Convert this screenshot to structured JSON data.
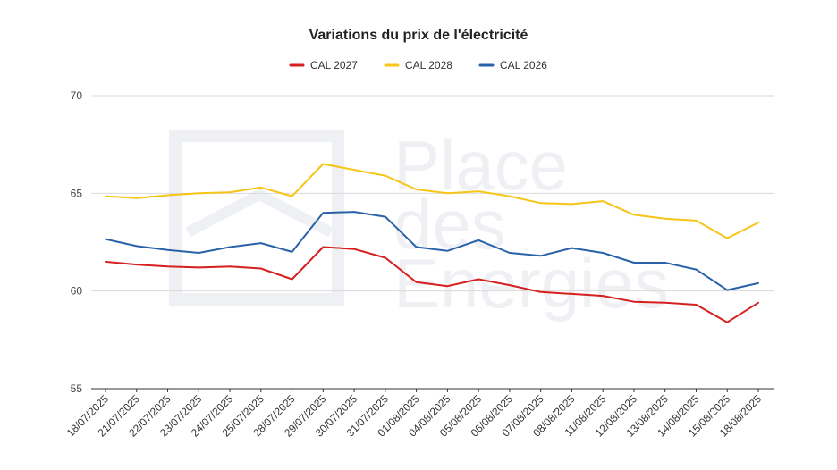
{
  "chart_data": {
    "type": "line",
    "title": "Variations du prix de l'électricité",
    "xlabel": "",
    "ylabel": "",
    "ylim": [
      55,
      70
    ],
    "yticks": [
      55,
      60,
      65,
      70
    ],
    "grid": true,
    "legend_position": "top",
    "categories": [
      "18/07/2025",
      "21/07/2025",
      "22/07/2025",
      "23/07/2025",
      "24/07/2025",
      "25/07/2025",
      "28/07/2025",
      "29/07/2025",
      "30/07/2025",
      "31/07/2025",
      "01/08/2025",
      "04/08/2025",
      "05/08/2025",
      "06/08/2025",
      "07/08/2025",
      "08/08/2025",
      "11/08/2025",
      "12/08/2025",
      "13/08/2025",
      "14/08/2025",
      "15/08/2025",
      "18/08/2025"
    ],
    "series": [
      {
        "name": "CAL 2027",
        "color": "#d61f1f",
        "values": [
          61.5,
          61.35,
          61.25,
          61.2,
          61.25,
          61.15,
          60.6,
          62.25,
          62.15,
          61.7,
          60.45,
          60.25,
          60.6,
          60.3,
          59.95,
          59.85,
          59.75,
          59.45,
          59.4,
          59.3,
          58.4,
          59.4
        ]
      },
      {
        "name": "CAL 2028",
        "color": "#f5c518",
        "values": [
          64.85,
          64.75,
          64.9,
          65.0,
          65.05,
          65.3,
          64.85,
          66.5,
          66.2,
          65.9,
          65.2,
          65.0,
          65.1,
          64.85,
          64.5,
          64.45,
          64.6,
          63.9,
          63.7,
          63.6,
          62.7,
          63.5
        ]
      },
      {
        "name": "CAL 2026",
        "color": "#2962a8",
        "values": [
          62.65,
          62.3,
          62.1,
          61.95,
          62.25,
          62.45,
          62.0,
          64.0,
          64.05,
          63.8,
          62.25,
          62.05,
          62.6,
          61.95,
          61.8,
          62.2,
          61.95,
          61.45,
          61.45,
          61.1,
          60.05,
          60.4
        ]
      }
    ]
  },
  "watermark": {
    "line1": "Place",
    "line2": "des",
    "line3": "Energies"
  }
}
